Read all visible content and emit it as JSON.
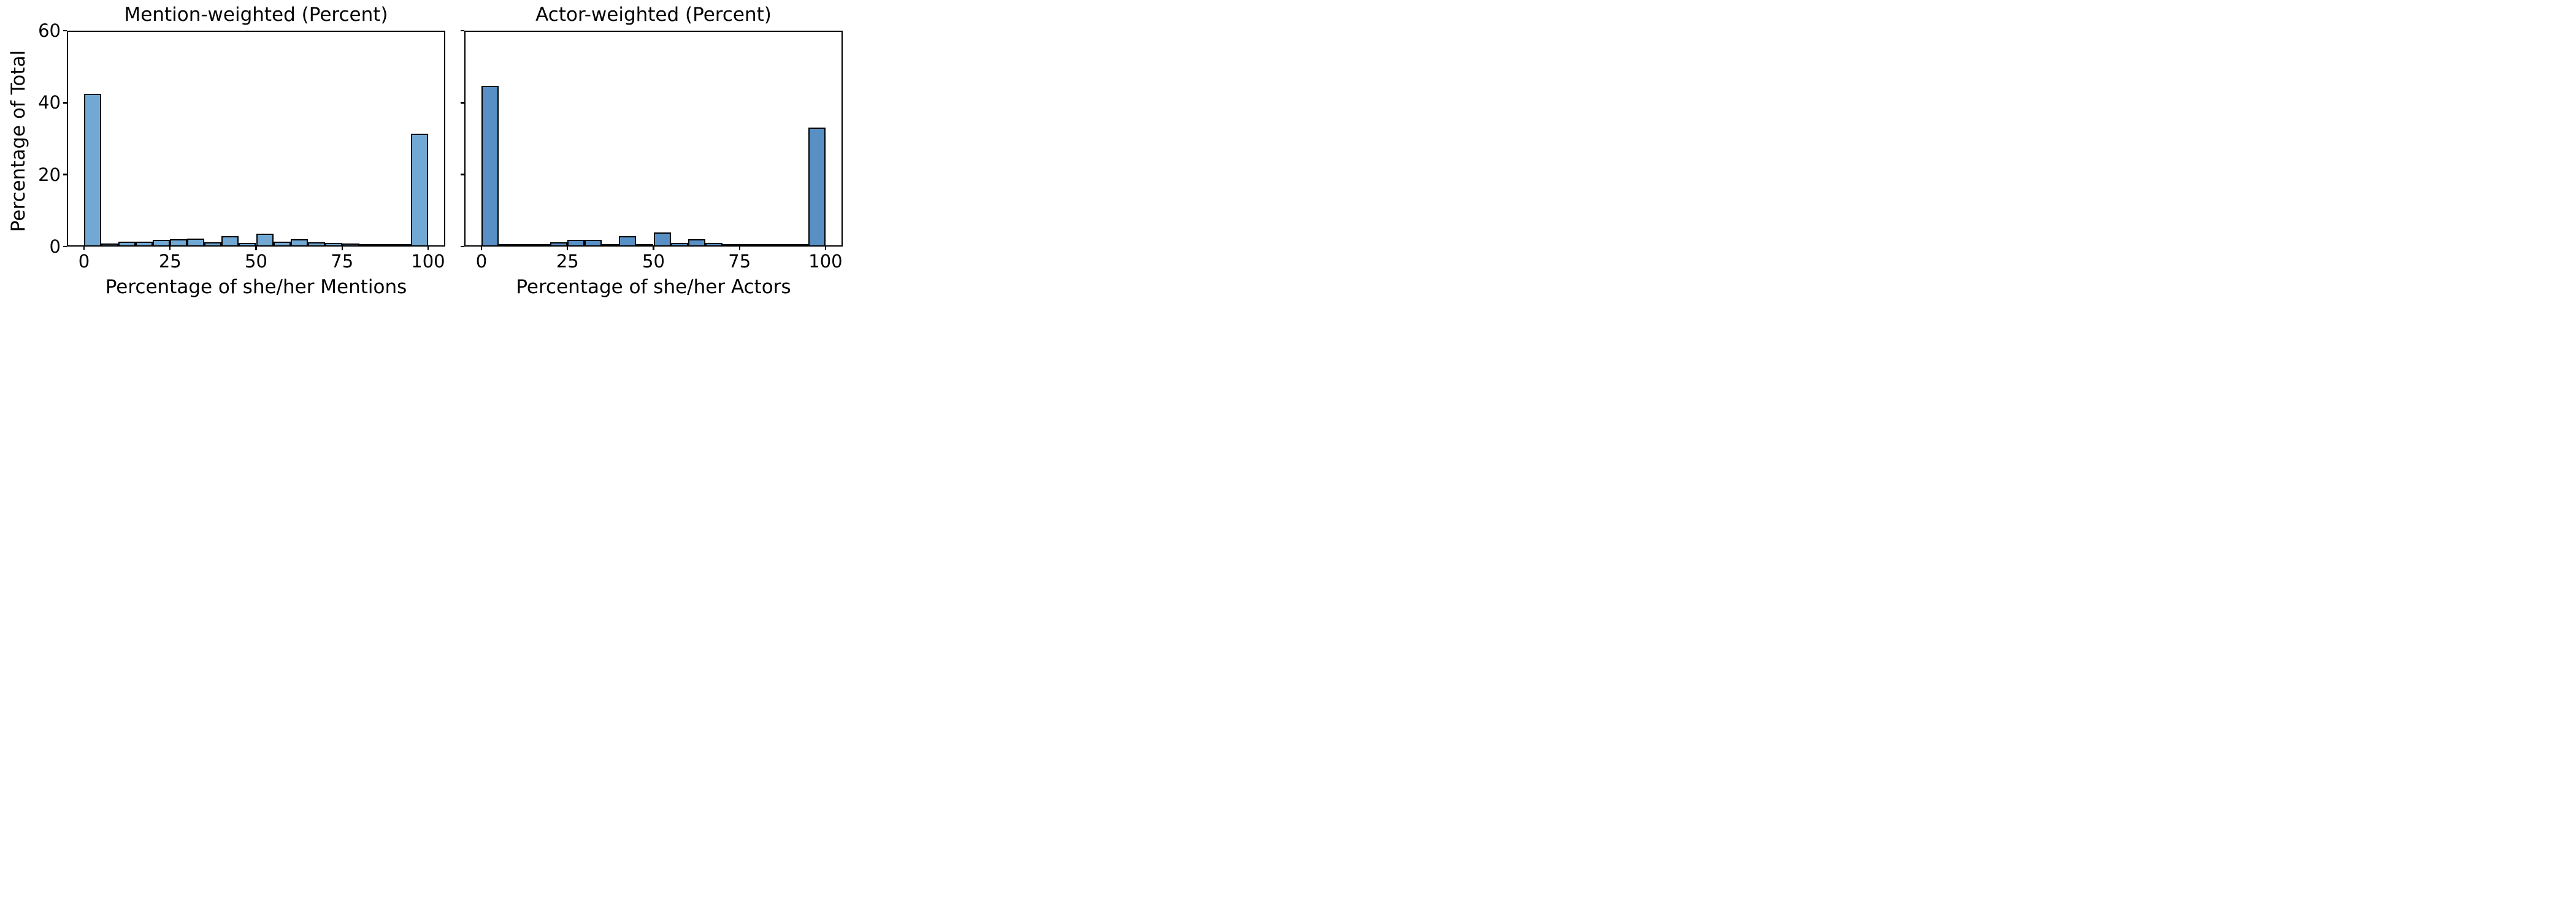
{
  "figure": {
    "background": "#ffffff",
    "text_color": "#000000",
    "edge_color": "#000000",
    "ylabel": "Percentage of Total"
  },
  "chart_data": [
    {
      "type": "bar",
      "subtype": "histogram",
      "title": "Mention-weighted (Percent)",
      "xlabel": "Percentage of she/her Mentions",
      "ylabel": "Percentage of Total",
      "bar_color": "#71a9d4",
      "edge_color": "#000000",
      "grid": false,
      "xlim": [
        -5,
        105
      ],
      "ylim": [
        0,
        60
      ],
      "xticks": [
        0,
        25,
        50,
        75,
        100
      ],
      "xtick_labels": [
        "0",
        "25",
        "50",
        "75",
        "100"
      ],
      "yticks": [
        0,
        20,
        40,
        60
      ],
      "ytick_labels": [
        "0",
        "20",
        "40",
        "60"
      ],
      "ytick_labels_visible": true,
      "bin_edges": [
        0,
        5,
        10,
        15,
        20,
        25,
        30,
        35,
        40,
        45,
        50,
        55,
        60,
        65,
        70,
        75,
        80,
        85,
        90,
        95,
        100
      ],
      "values": [
        42.4,
        0.8,
        1.4,
        1.4,
        1.9,
        2.0,
        2.3,
        1.2,
        2.9,
        0.95,
        3.6,
        1.3,
        2.1,
        1.25,
        1.0,
        0.8,
        0.75,
        0.45,
        0.1,
        31.3
      ]
    },
    {
      "type": "bar",
      "subtype": "histogram",
      "title": "Actor-weighted (Percent)",
      "xlabel": "Percentage of she/her Actors",
      "ylabel": "Percentage of Total",
      "bar_color": "#5890c6",
      "edge_color": "#000000",
      "grid": false,
      "xlim": [
        -5,
        105
      ],
      "ylim": [
        0,
        60
      ],
      "xticks": [
        0,
        25,
        50,
        75,
        100
      ],
      "xtick_labels": [
        "0",
        "25",
        "50",
        "75",
        "100"
      ],
      "yticks": [
        0,
        20,
        40,
        60
      ],
      "ytick_labels": [
        "0",
        "20",
        "40",
        "60"
      ],
      "ytick_labels_visible": false,
      "bin_edges": [
        0,
        5,
        10,
        15,
        20,
        25,
        30,
        35,
        40,
        45,
        50,
        55,
        60,
        65,
        70,
        75,
        80,
        85,
        90,
        95,
        100
      ],
      "values": [
        44.6,
        0.25,
        0.75,
        0.75,
        1.25,
        1.8,
        1.8,
        0.75,
        2.9,
        0.4,
        4.0,
        1.1,
        2.0,
        1.1,
        0.65,
        0.6,
        0.4,
        0.15,
        0.05,
        33.0
      ]
    }
  ]
}
